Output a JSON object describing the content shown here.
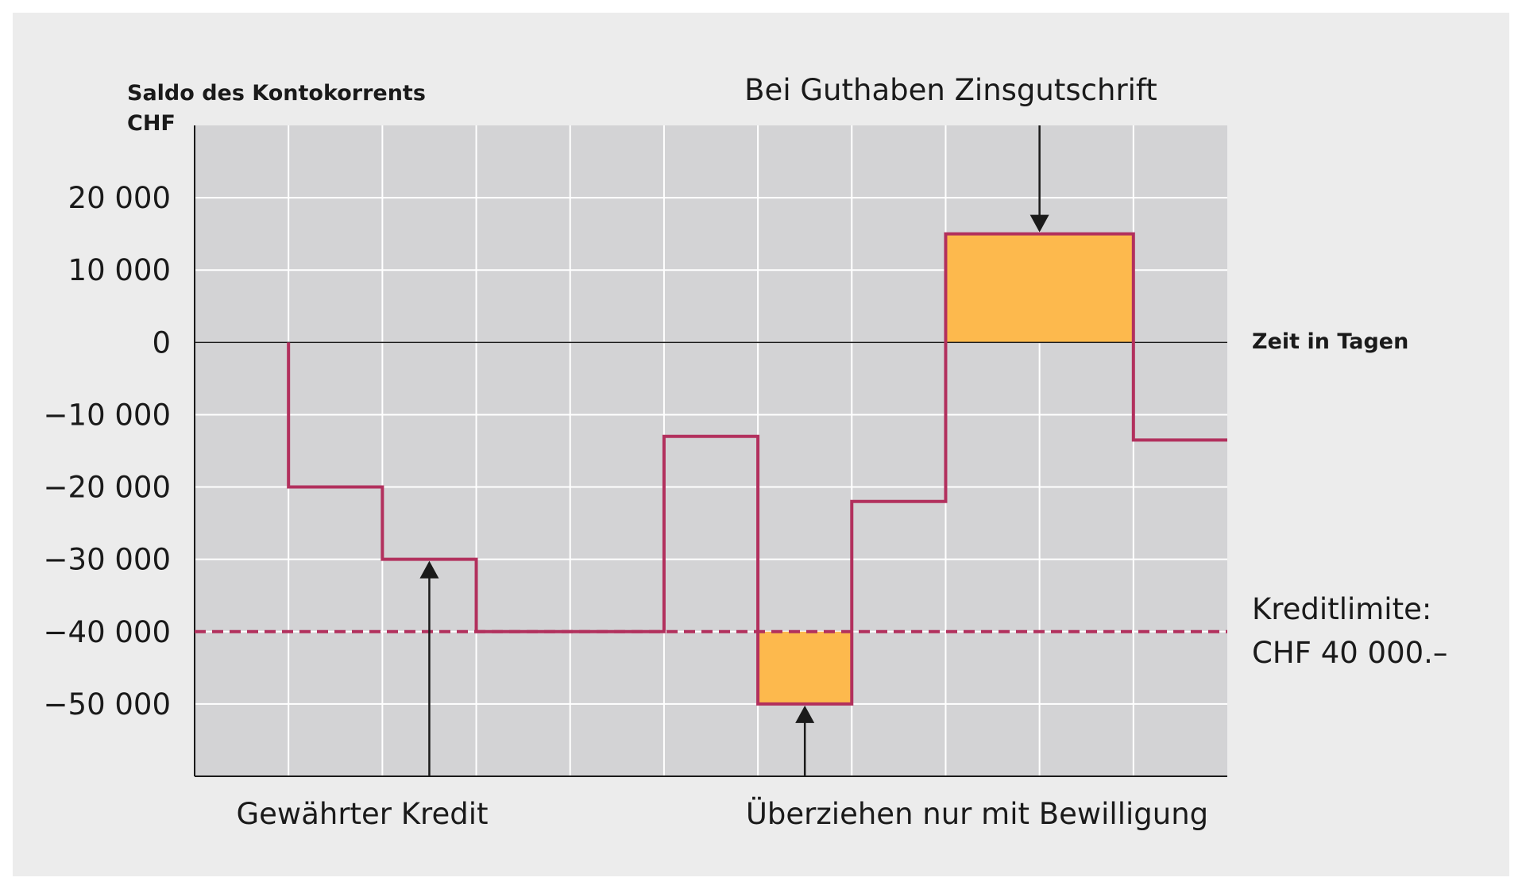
{
  "chart_data": {
    "type": "line",
    "step": true,
    "ylabel": "Saldo des Kontokorrents",
    "yunit": "CHF",
    "xlabel": "Zeit in Tagen",
    "x_segments": 11,
    "ylim": [
      -60000,
      30000
    ],
    "yticks": [
      {
        "value": 20000,
        "label": "20 000"
      },
      {
        "value": 10000,
        "label": "10 000"
      },
      {
        "value": 0,
        "label": "0"
      },
      {
        "value": -10000,
        "label": "−10 000"
      },
      {
        "value": -20000,
        "label": "−20 000"
      },
      {
        "value": -30000,
        "label": "−30 000"
      },
      {
        "value": -40000,
        "label": "−40 000"
      },
      {
        "value": -50000,
        "label": "−50 000"
      }
    ],
    "grid": true,
    "series": [
      {
        "values": [
          {
            "x": 1,
            "y": 0
          },
          {
            "x": 1,
            "y": -20000
          },
          {
            "x": 2,
            "y": -20000
          },
          {
            "x": 2,
            "y": -30000
          },
          {
            "x": 3,
            "y": -30000
          },
          {
            "x": 3,
            "y": -40000
          },
          {
            "x": 5,
            "y": -40000
          },
          {
            "x": 5,
            "y": -13000
          },
          {
            "x": 6,
            "y": -13000
          },
          {
            "x": 6,
            "y": -50000
          },
          {
            "x": 7,
            "y": -50000
          },
          {
            "x": 7,
            "y": -22000
          },
          {
            "x": 8,
            "y": -22000
          },
          {
            "x": 8,
            "y": 15000
          },
          {
            "x": 10,
            "y": 15000
          },
          {
            "x": 10,
            "y": -13500
          },
          {
            "x": 11,
            "y": -13500
          }
        ]
      }
    ],
    "reference_line": {
      "y": -40000,
      "style": "dashed",
      "label_line1": "Kreditlimite:",
      "label_line2": "CHF 40 000.–"
    },
    "highlight_areas": [
      {
        "x0": 6,
        "x1": 7,
        "y0": -40000,
        "y1": -50000
      },
      {
        "x0": 8,
        "x1": 10,
        "y0": 0,
        "y1": 15000
      }
    ],
    "annotations": [
      {
        "text": "Bei Guthaben Zinsgutschrift",
        "arrow_x": 9,
        "arrow_y": 15000,
        "position": "top"
      },
      {
        "text": "Gewährter Kredit",
        "arrow_x": 2.5,
        "arrow_y": -30000,
        "position": "bottom"
      },
      {
        "text": "Überziehen nur mit Bewilligung",
        "arrow_x": 6.5,
        "arrow_y": -50000,
        "position": "bottom"
      }
    ],
    "colors": {
      "background": "#ececec",
      "plot": "#d3d3d5",
      "grid": "#ffffff",
      "line": "#b2305d",
      "highlight": "#fdb94d",
      "axis": "#1a1a1a"
    }
  }
}
